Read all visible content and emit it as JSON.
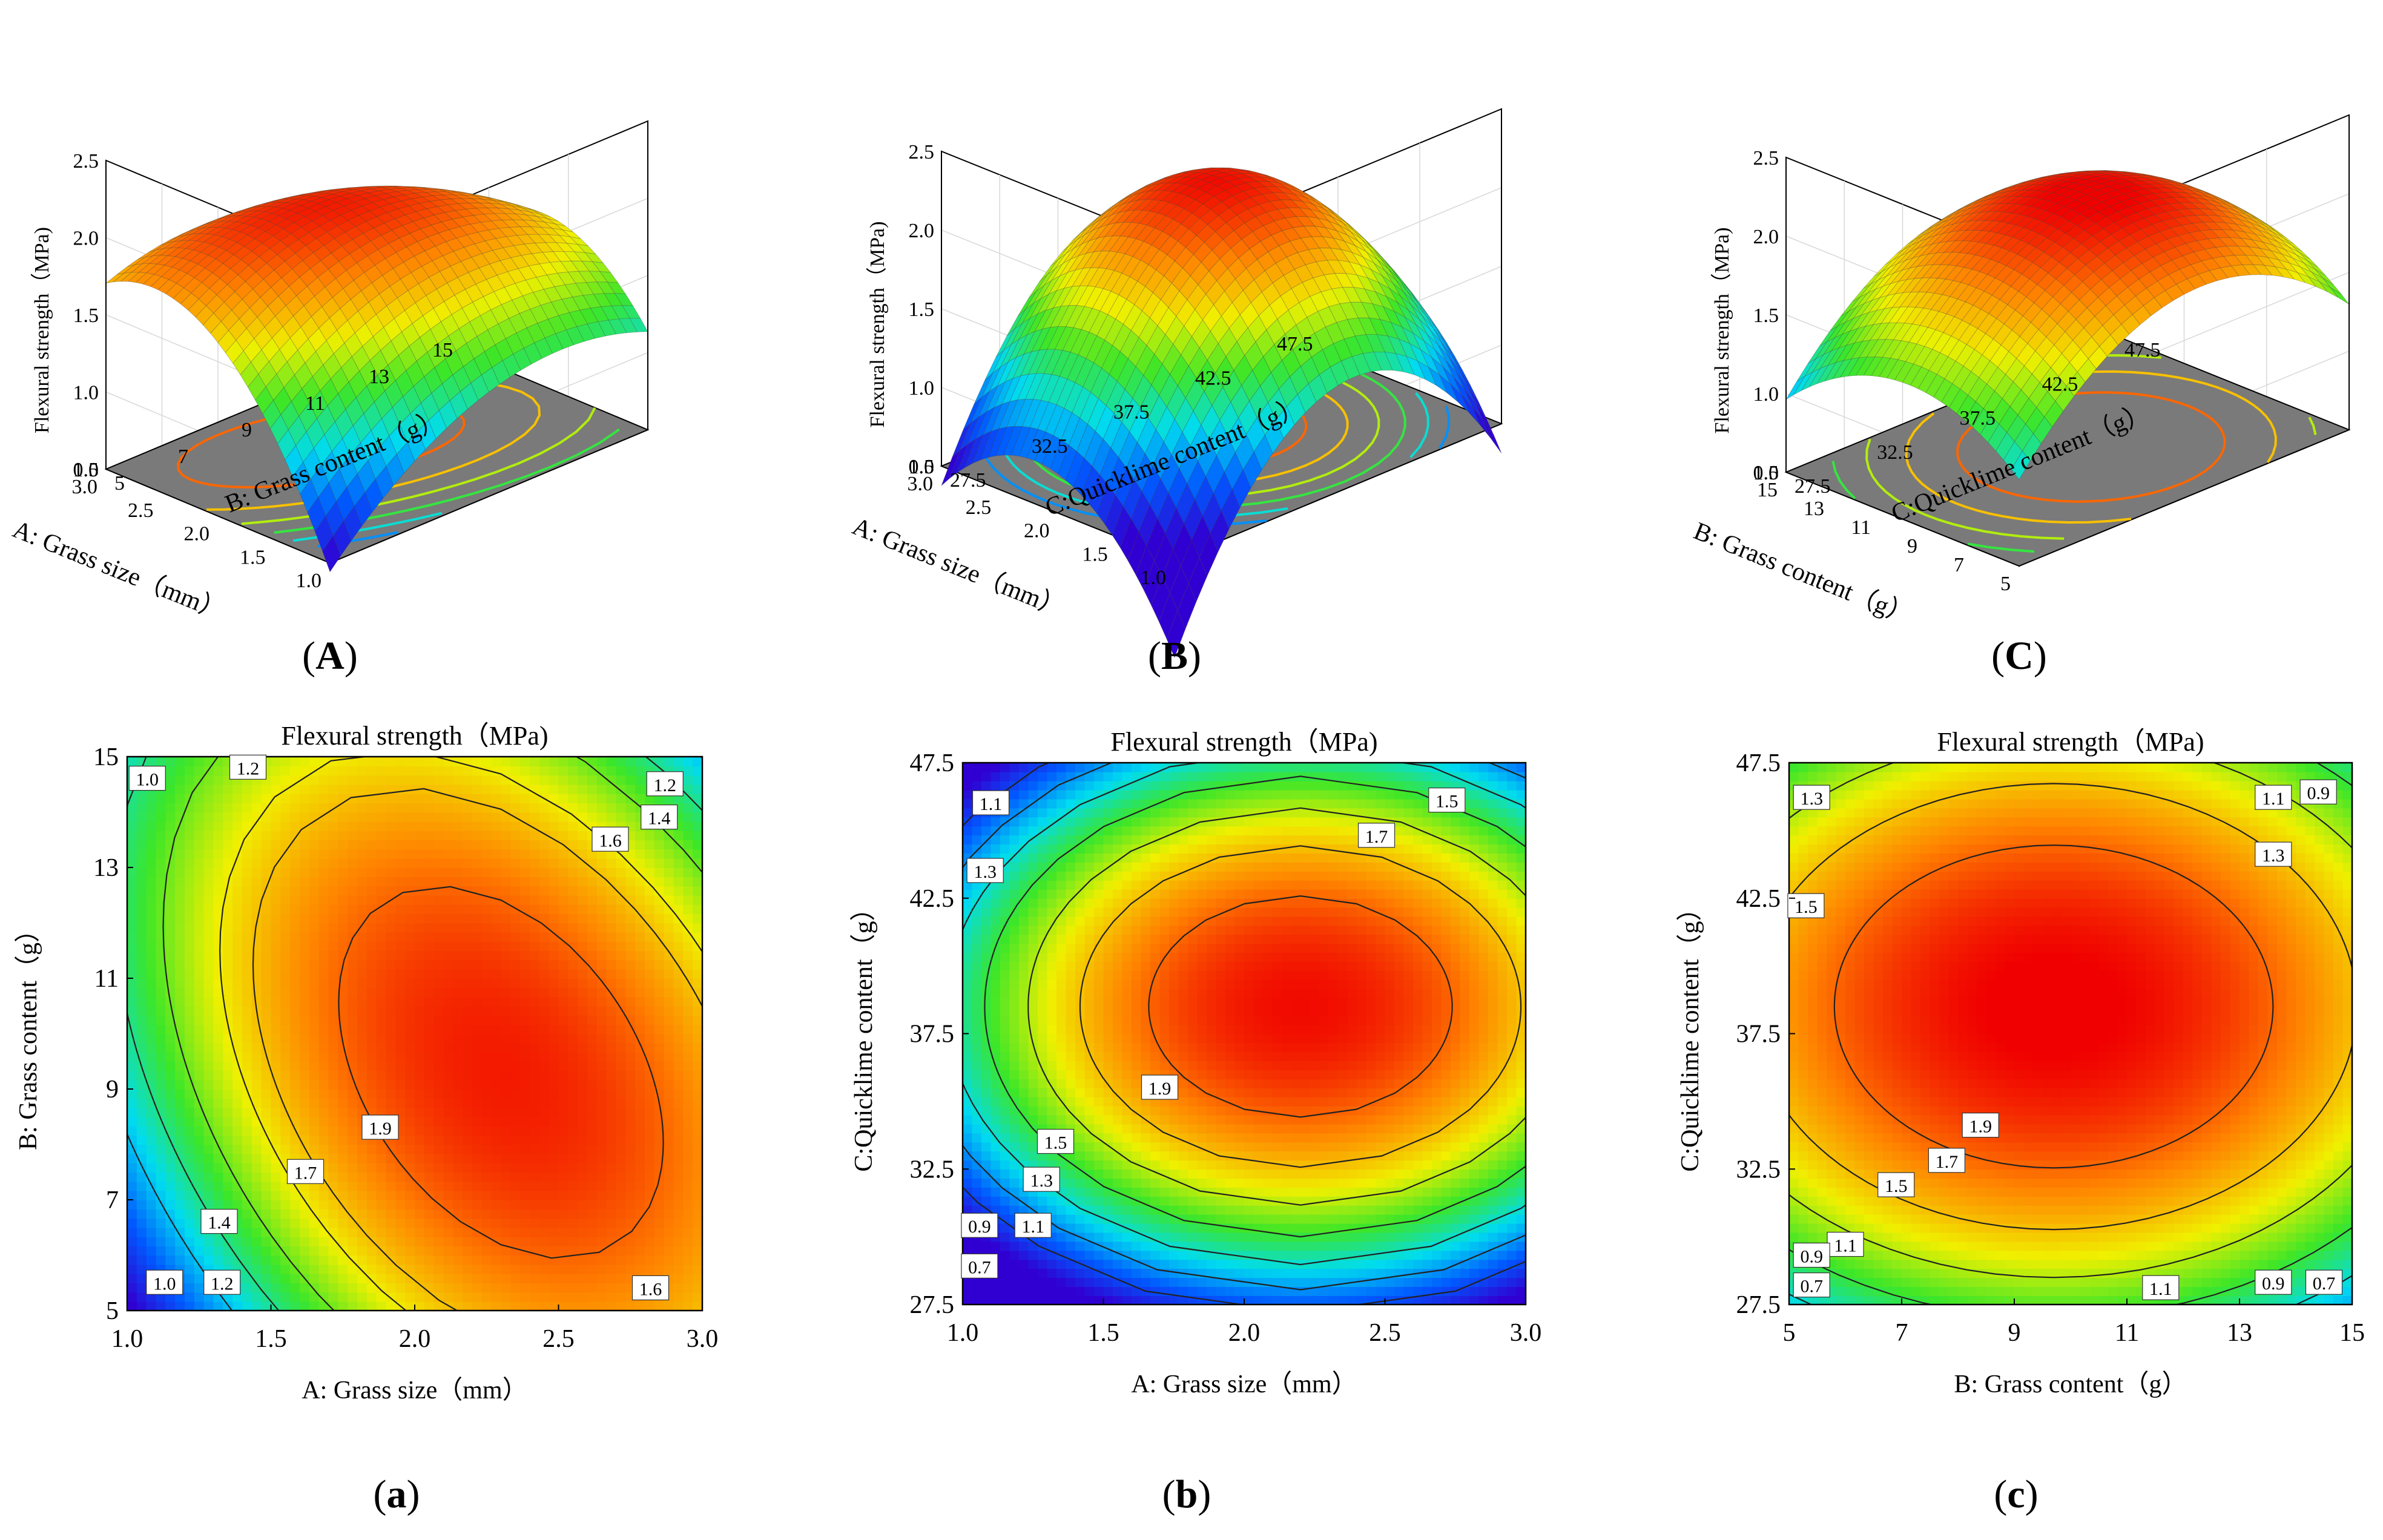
{
  "figure": {
    "response": "Flexural strength (MPa)"
  },
  "chart_data": [
    {
      "id": "A",
      "type": "surface3d",
      "panel_label": "A",
      "zlabel": "Flexural strength（MPa)",
      "xlabel": "A: Grass size（mm）",
      "ylabel": "B: Grass content（g）",
      "x_ticks": [
        "1.0",
        "1.5",
        "2.0",
        "2.5",
        "3.0"
      ],
      "y_ticks": [
        "5",
        "7",
        "9",
        "11",
        "13",
        "15"
      ],
      "z_ticks": [
        "0.5",
        "1.0",
        "1.5",
        "2.0",
        "2.5"
      ],
      "x_range": [
        1.0,
        3.0
      ],
      "y_range": [
        5,
        15
      ],
      "z_range": [
        0.5,
        2.5
      ],
      "model": {
        "x0": 2.3,
        "y0": 9.3,
        "peak": 2.05,
        "ax": 0.55,
        "by": 0.0155,
        "cxy": 0.07
      }
    },
    {
      "id": "B",
      "type": "surface3d",
      "panel_label": "B",
      "zlabel": "Flexural strength（MPa)",
      "xlabel": "A: Grass size（mm）",
      "ylabel": "C:Quicklime content（g）",
      "x_ticks": [
        "1.0",
        "1.5",
        "2.0",
        "2.5",
        "3.0"
      ],
      "y_ticks": [
        "27.5",
        "32.5",
        "37.5",
        "42.5",
        "47.5"
      ],
      "z_ticks": [
        "0.5",
        "1.0",
        "1.5",
        "2.0",
        "2.5"
      ],
      "x_range": [
        1.0,
        3.0
      ],
      "y_range": [
        27.5,
        47.5
      ],
      "z_range": [
        0.5,
        2.5
      ],
      "model": {
        "x0": 2.2,
        "y0": 38.5,
        "peak": 2.08,
        "ax": 0.62,
        "by": 0.0108,
        "cxy": 0
      }
    },
    {
      "id": "C",
      "type": "surface3d",
      "panel_label": "C",
      "zlabel": "Flexural strength（MPa)",
      "xlabel": "B: Grass content（g）",
      "ylabel": "C:Quicklime content（g）",
      "x_ticks": [
        "5",
        "7",
        "9",
        "11",
        "13",
        "15"
      ],
      "y_ticks": [
        "27.5",
        "32.5",
        "37.5",
        "42.5",
        "47.5"
      ],
      "z_ticks": [
        "0.5",
        "1.0",
        "1.5",
        "2.0",
        "2.5"
      ],
      "x_range": [
        5,
        15
      ],
      "y_range": [
        27.5,
        47.5
      ],
      "z_range": [
        0.5,
        2.5
      ],
      "model": {
        "x0": 9.7,
        "y0": 38.5,
        "peak": 2.12,
        "ax": 0.0145,
        "by": 0.0062,
        "cxy": 0
      }
    },
    {
      "id": "a",
      "type": "contour",
      "panel_label": "a",
      "title": "Flexural strength（MPa)",
      "xlabel": "A: Grass size（mm）",
      "ylabel": "B: Grass content（g）",
      "x_ticks": [
        "1.0",
        "1.5",
        "2.0",
        "2.5",
        "3.0"
      ],
      "y_ticks": [
        "5",
        "7",
        "9",
        "11",
        "13",
        "15"
      ],
      "x_range": [
        1.0,
        3.0
      ],
      "y_range": [
        5,
        15
      ],
      "levels": [
        1.0,
        1.2,
        1.4,
        1.6,
        1.7,
        1.9
      ],
      "labels": [
        {
          "text": "1.0",
          "x": 1.07,
          "y": 14.6
        },
        {
          "text": "1.2",
          "x": 1.42,
          "y": 14.8
        },
        {
          "text": "1.2",
          "x": 2.87,
          "y": 14.5
        },
        {
          "text": "1.4",
          "x": 2.85,
          "y": 13.9
        },
        {
          "text": "1.6",
          "x": 2.68,
          "y": 13.5
        },
        {
          "text": "1.9",
          "x": 1.88,
          "y": 8.3
        },
        {
          "text": "1.7",
          "x": 1.62,
          "y": 7.5
        },
        {
          "text": "1.4",
          "x": 1.32,
          "y": 6.6
        },
        {
          "text": "1.2",
          "x": 1.33,
          "y": 5.5
        },
        {
          "text": "1.0",
          "x": 1.13,
          "y": 5.5
        },
        {
          "text": "1.6",
          "x": 2.82,
          "y": 5.4
        }
      ],
      "model": {
        "x0": 2.3,
        "y0": 9.3,
        "peak": 2.05,
        "ax": 0.55,
        "by": 0.0155,
        "cxy": 0.07
      }
    },
    {
      "id": "b",
      "type": "contour",
      "panel_label": "b",
      "title": "Flexural strength（MPa)",
      "xlabel": "A: Grass size（mm）",
      "ylabel": "C:Quicklime content（g）",
      "x_ticks": [
        "1.0",
        "1.5",
        "2.0",
        "2.5",
        "3.0"
      ],
      "y_ticks": [
        "27.5",
        "32.5",
        "37.5",
        "42.5",
        "47.5"
      ],
      "x_range": [
        1.0,
        3.0
      ],
      "y_range": [
        27.5,
        47.5
      ],
      "levels": [
        0.7,
        0.9,
        1.1,
        1.3,
        1.5,
        1.7,
        1.9
      ],
      "labels": [
        {
          "text": "1.1",
          "x": 1.1,
          "y": 46.0
        },
        {
          "text": "1.3",
          "x": 1.08,
          "y": 43.5
        },
        {
          "text": "1.5",
          "x": 2.72,
          "y": 46.1
        },
        {
          "text": "1.7",
          "x": 2.47,
          "y": 44.8
        },
        {
          "text": "1.9",
          "x": 1.7,
          "y": 35.5
        },
        {
          "text": "1.5",
          "x": 1.33,
          "y": 33.5
        },
        {
          "text": "1.3",
          "x": 1.28,
          "y": 32.1
        },
        {
          "text": "1.1",
          "x": 1.25,
          "y": 30.4
        },
        {
          "text": "0.9",
          "x": 1.06,
          "y": 30.4
        },
        {
          "text": "0.7",
          "x": 1.06,
          "y": 28.9
        }
      ],
      "model": {
        "x0": 2.2,
        "y0": 38.5,
        "peak": 2.08,
        "ax": 0.62,
        "by": 0.0108,
        "cxy": 0
      }
    },
    {
      "id": "c",
      "type": "contour",
      "panel_label": "c",
      "title": "Flexural strength（MPa)",
      "xlabel": "B: Grass content（g）",
      "ylabel": "C:Quicklime content（g）",
      "x_ticks": [
        "5",
        "7",
        "9",
        "11",
        "13",
        "15"
      ],
      "y_ticks": [
        "27.5",
        "32.5",
        "37.5",
        "42.5",
        "47.5"
      ],
      "x_range": [
        5,
        15
      ],
      "y_range": [
        27.5,
        47.5
      ],
      "levels": [
        0.7,
        0.9,
        1.1,
        1.3,
        1.5,
        1.7,
        1.9
      ],
      "labels": [
        {
          "text": "1.3",
          "x": 5.4,
          "y": 46.2
        },
        {
          "text": "1.1",
          "x": 13.6,
          "y": 46.2
        },
        {
          "text": "0.9",
          "x": 14.4,
          "y": 46.4
        },
        {
          "text": "1.3",
          "x": 13.6,
          "y": 44.1
        },
        {
          "text": "1.5",
          "x": 5.3,
          "y": 42.2
        },
        {
          "text": "1.9",
          "x": 8.4,
          "y": 34.1
        },
        {
          "text": "1.7",
          "x": 7.8,
          "y": 32.8
        },
        {
          "text": "1.5",
          "x": 6.9,
          "y": 31.9
        },
        {
          "text": "1.1",
          "x": 6.0,
          "y": 29.7
        },
        {
          "text": "0.9",
          "x": 5.4,
          "y": 29.3
        },
        {
          "text": "0.7",
          "x": 5.4,
          "y": 28.2
        },
        {
          "text": "1.1",
          "x": 11.6,
          "y": 28.1
        },
        {
          "text": "0.9",
          "x": 13.6,
          "y": 28.3
        },
        {
          "text": "0.7",
          "x": 14.5,
          "y": 28.3
        }
      ],
      "model": {
        "x0": 9.7,
        "y0": 38.5,
        "peak": 2.12,
        "ax": 0.0145,
        "by": 0.0062,
        "cxy": 0
      }
    }
  ]
}
